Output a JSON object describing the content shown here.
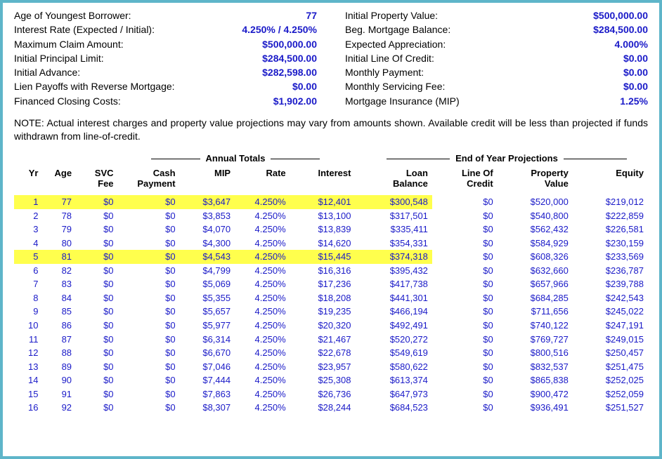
{
  "top_left": [
    {
      "label": "Age of Youngest Borrower:",
      "value": "77"
    },
    {
      "label": "Interest Rate (Expected / Initial):",
      "value": "4.250%  /  4.250%"
    },
    {
      "label": "Maximum Claim Amount:",
      "value": "$500,000.00"
    },
    {
      "label": "Initial Principal Limit:",
      "value": "$284,500.00"
    },
    {
      "label": "Initial Advance:",
      "value": "$282,598.00"
    },
    {
      "label": "Lien Payoffs with Reverse Mortgage:",
      "value": "$0.00"
    },
    {
      "label": "Financed Closing Costs:",
      "value": "$1,902.00"
    }
  ],
  "top_right": [
    {
      "label": "Initial Property Value:",
      "value": "$500,000.00"
    },
    {
      "label": "Beg. Mortgage Balance:",
      "value": "$284,500.00"
    },
    {
      "label": "Expected Appreciation:",
      "value": "4.000%"
    },
    {
      "label": "Initial Line Of Credit:",
      "value": "$0.00"
    },
    {
      "label": "Monthly Payment:",
      "value": "$0.00"
    },
    {
      "label": "Monthly Servicing Fee:",
      "value": "$0.00"
    },
    {
      "label": "Mortgage Insurance (MIP)",
      "value": "1.25%"
    }
  ],
  "note": "NOTE: Actual interest charges and property value projections may vary from amounts shown. Available credit will be less than projected if funds withdrawn from line-of-credit.",
  "group_labels": {
    "annual": "Annual Totals",
    "eoy": "End of Year Projections"
  },
  "columns": [
    "Yr",
    "Age",
    "SVC\nFee",
    "Cash\nPayment",
    "MIP",
    "Rate",
    "Interest",
    "Loan\nBalance",
    "Line Of\nCredit",
    "Property\nValue",
    "Equity"
  ],
  "highlight_rows": [
    0,
    4
  ],
  "highlight_cols": [
    0,
    1,
    2,
    3,
    4,
    5,
    6,
    7
  ],
  "rows": [
    [
      "1",
      "77",
      "$0",
      "$0",
      "$3,647",
      "4.250%",
      "$12,401",
      "$300,548",
      "$0",
      "$520,000",
      "$219,012"
    ],
    [
      "2",
      "78",
      "$0",
      "$0",
      "$3,853",
      "4.250%",
      "$13,100",
      "$317,501",
      "$0",
      "$540,800",
      "$222,859"
    ],
    [
      "3",
      "79",
      "$0",
      "$0",
      "$4,070",
      "4.250%",
      "$13,839",
      "$335,411",
      "$0",
      "$562,432",
      "$226,581"
    ],
    [
      "4",
      "80",
      "$0",
      "$0",
      "$4,300",
      "4.250%",
      "$14,620",
      "$354,331",
      "$0",
      "$584,929",
      "$230,159"
    ],
    [
      "5",
      "81",
      "$0",
      "$0",
      "$4,543",
      "4.250%",
      "$15,445",
      "$374,318",
      "$0",
      "$608,326",
      "$233,569"
    ],
    [
      "6",
      "82",
      "$0",
      "$0",
      "$4,799",
      "4.250%",
      "$16,316",
      "$395,432",
      "$0",
      "$632,660",
      "$236,787"
    ],
    [
      "7",
      "83",
      "$0",
      "$0",
      "$5,069",
      "4.250%",
      "$17,236",
      "$417,738",
      "$0",
      "$657,966",
      "$239,788"
    ],
    [
      "8",
      "84",
      "$0",
      "$0",
      "$5,355",
      "4.250%",
      "$18,208",
      "$441,301",
      "$0",
      "$684,285",
      "$242,543"
    ],
    [
      "9",
      "85",
      "$0",
      "$0",
      "$5,657",
      "4.250%",
      "$19,235",
      "$466,194",
      "$0",
      "$711,656",
      "$245,022"
    ],
    [
      "10",
      "86",
      "$0",
      "$0",
      "$5,977",
      "4.250%",
      "$20,320",
      "$492,491",
      "$0",
      "$740,122",
      "$247,191"
    ],
    [
      "11",
      "87",
      "$0",
      "$0",
      "$6,314",
      "4.250%",
      "$21,467",
      "$520,272",
      "$0",
      "$769,727",
      "$249,015"
    ],
    [
      "12",
      "88",
      "$0",
      "$0",
      "$6,670",
      "4.250%",
      "$22,678",
      "$549,619",
      "$0",
      "$800,516",
      "$250,457"
    ],
    [
      "13",
      "89",
      "$0",
      "$0",
      "$7,046",
      "4.250%",
      "$23,957",
      "$580,622",
      "$0",
      "$832,537",
      "$251,475"
    ],
    [
      "14",
      "90",
      "$0",
      "$0",
      "$7,444",
      "4.250%",
      "$25,308",
      "$613,374",
      "$0",
      "$865,838",
      "$252,025"
    ],
    [
      "15",
      "91",
      "$0",
      "$0",
      "$7,863",
      "4.250%",
      "$26,736",
      "$647,973",
      "$0",
      "$900,472",
      "$252,059"
    ],
    [
      "16",
      "92",
      "$0",
      "$0",
      "$8,307",
      "4.250%",
      "$28,244",
      "$684,523",
      "$0",
      "$936,491",
      "$251,527"
    ]
  ],
  "colors": {
    "border": "#5eb5c9",
    "value": "#1a1ac8",
    "highlight": "#ffff4d",
    "text": "#000000"
  }
}
